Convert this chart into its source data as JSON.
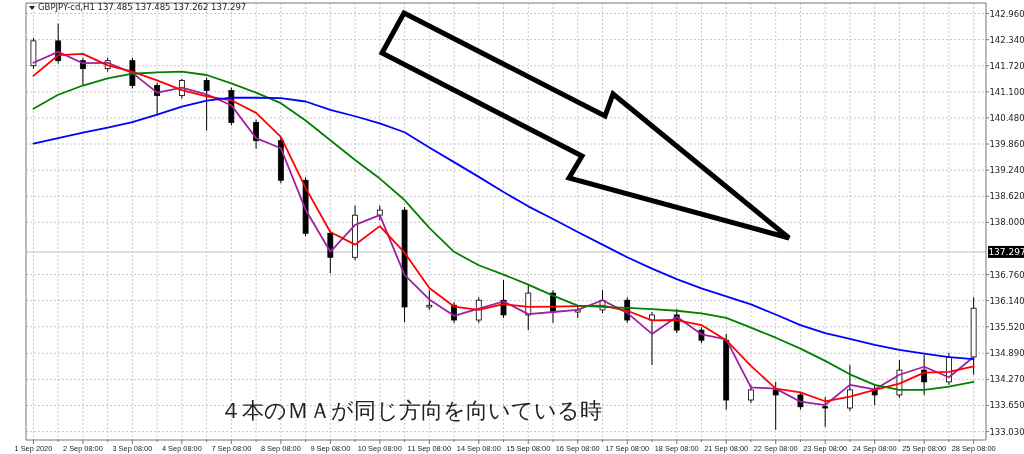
{
  "chart_data": {
    "type": "candlestick",
    "title": "GBPJPY-cd,H1 137.485 137.485 137.262 137.297",
    "annotations": [
      "４本のＭＡが同じ方向を向いている時"
    ],
    "color": "#000000",
    "categories": [
      "1 Sep 2020",
      null,
      "2 Sep 08:00",
      null,
      "3 Sep 08:00",
      null,
      "4 Sep 08:00",
      null,
      "7 Sep 08:00",
      null,
      "8 Sep 08:00",
      null,
      "9 Sep 08:00",
      null,
      "10 Sep 08:00",
      null,
      "11 Sep 08:00",
      null,
      "14 Sep 08:00",
      null,
      "15 Sep 08:00",
      null,
      "16 Sep 08:00",
      null,
      "17 Sep 08:00",
      null,
      "18 Sep 08:00",
      null,
      "21 Sep 08:00",
      null,
      "22 Sep 08:00",
      null,
      "23 Sep 08:00",
      null,
      "24 Sep 08:00",
      null,
      "25 Sep 08:00",
      null,
      "28 Sep 08:00"
    ],
    "ohlc": [
      [
        141.72,
        142.38,
        141.65,
        142.31
      ],
      [
        142.31,
        142.72,
        141.77,
        141.84
      ],
      [
        141.84,
        141.91,
        141.25,
        141.65
      ],
      [
        141.65,
        141.91,
        141.58,
        141.84
      ],
      [
        141.84,
        141.91,
        141.18,
        141.25
      ],
      [
        141.25,
        141.32,
        140.54,
        141.01
      ],
      [
        141.01,
        141.41,
        140.94,
        141.37
      ],
      [
        141.37,
        141.44,
        140.18,
        141.13
      ],
      [
        141.13,
        141.2,
        140.3,
        140.37
      ],
      [
        140.37,
        140.44,
        139.75,
        139.94
      ],
      [
        139.94,
        140.02,
        138.93,
        139.0
      ],
      [
        139.0,
        139.07,
        137.67,
        137.74
      ],
      [
        137.74,
        137.81,
        136.79,
        137.17
      ],
      [
        137.17,
        138.4,
        137.1,
        138.17
      ],
      [
        138.17,
        138.4,
        138.05,
        138.29
      ],
      [
        138.29,
        138.36,
        135.63,
        135.99
      ],
      [
        135.99,
        136.39,
        135.92,
        136.03
      ],
      [
        136.03,
        136.11,
        135.61,
        135.68
      ],
      [
        135.68,
        136.22,
        135.61,
        136.15
      ],
      [
        136.15,
        136.63,
        135.73,
        135.8
      ],
      [
        135.8,
        136.51,
        135.44,
        136.32
      ],
      [
        136.32,
        136.39,
        135.61,
        135.87
      ],
      [
        135.87,
        135.99,
        135.73,
        135.92
      ],
      [
        135.92,
        136.39,
        135.84,
        136.15
      ],
      [
        136.15,
        136.22,
        135.61,
        135.68
      ],
      [
        135.68,
        135.87,
        134.61,
        135.8
      ],
      [
        135.8,
        135.94,
        135.37,
        135.44
      ],
      [
        135.44,
        135.51,
        135.13,
        135.2
      ],
      [
        135.2,
        135.35,
        133.55,
        133.78
      ],
      [
        133.78,
        134.14,
        133.71,
        134.02
      ],
      [
        134.02,
        134.21,
        133.07,
        133.9
      ],
      [
        133.9,
        133.97,
        133.55,
        133.62
      ],
      [
        133.62,
        133.85,
        133.14,
        133.59
      ],
      [
        133.59,
        134.61,
        133.52,
        134.02
      ],
      [
        134.02,
        134.14,
        133.66,
        133.9
      ],
      [
        133.9,
        134.73,
        133.83,
        134.49
      ],
      [
        134.49,
        134.85,
        133.9,
        134.21
      ],
      [
        134.21,
        134.9,
        134.14,
        134.8
      ],
      [
        134.8,
        136.22,
        134.38,
        135.96
      ]
    ],
    "series": [
      {
        "type": "line",
        "color": "#a020a0",
        "values": [
          141.79,
          142.05,
          141.78,
          141.79,
          141.55,
          141.08,
          141.2,
          141.04,
          140.78,
          140.0,
          139.76,
          138.3,
          137.3,
          137.94,
          138.17,
          136.75,
          136.17,
          135.78,
          135.95,
          136.12,
          135.82,
          135.87,
          135.92,
          136.15,
          135.85,
          135.35,
          135.76,
          135.34,
          135.22,
          134.08,
          134.05,
          133.74,
          133.66,
          134.14,
          134.03,
          134.38,
          134.57,
          134.32,
          134.8
        ]
      },
      {
        "type": "line",
        "color": "#ff0000",
        "values": [
          141.48,
          141.97,
          142.0,
          141.73,
          141.58,
          141.37,
          141.14,
          140.99,
          140.9,
          140.6,
          140.03,
          138.82,
          137.77,
          137.47,
          137.91,
          137.28,
          136.44,
          136.0,
          135.92,
          136.06,
          135.99,
          136.0,
          136.01,
          136.02,
          135.9,
          135.67,
          135.68,
          135.56,
          135.2,
          134.59,
          134.05,
          133.96,
          133.75,
          133.86,
          134.02,
          134.17,
          134.43,
          134.45,
          134.58
        ]
      },
      {
        "type": "line",
        "color": "#008000",
        "values": [
          140.7,
          141.03,
          141.25,
          141.42,
          141.53,
          141.56,
          141.58,
          141.5,
          141.3,
          141.08,
          140.83,
          140.42,
          139.95,
          139.48,
          139.04,
          138.53,
          137.87,
          137.3,
          136.98,
          136.76,
          136.52,
          136.26,
          136.02,
          135.99,
          135.97,
          135.94,
          135.9,
          135.84,
          135.73,
          135.5,
          135.26,
          135.0,
          134.71,
          134.39,
          134.14,
          134.02,
          134.02,
          134.1,
          134.21
        ]
      },
      {
        "type": "line",
        "color": "#0000ff",
        "values": [
          139.87,
          140.0,
          140.13,
          140.25,
          140.38,
          140.56,
          140.75,
          140.89,
          140.96,
          140.96,
          140.95,
          140.87,
          140.67,
          140.52,
          140.35,
          140.14,
          139.78,
          139.43,
          139.08,
          138.72,
          138.38,
          138.08,
          137.77,
          137.47,
          137.17,
          136.9,
          136.65,
          136.43,
          136.24,
          136.05,
          135.81,
          135.56,
          135.37,
          135.23,
          135.09,
          134.97,
          134.88,
          134.8,
          134.75
        ]
      }
    ],
    "ylim": [
      132.83,
      143.21
    ],
    "yticks": [
      {
        "value": 142.96,
        "label": "142.960"
      },
      {
        "value": 142.34,
        "label": "142.340"
      },
      {
        "value": 141.72,
        "label": "141.720"
      },
      {
        "value": 141.1,
        "label": "141.100"
      },
      {
        "value": 140.48,
        "label": "140.480"
      },
      {
        "value": 139.86,
        "label": "139.860"
      },
      {
        "value": 139.24,
        "label": "139.240"
      },
      {
        "value": 138.62,
        "label": "138.620"
      },
      {
        "value": 138.0,
        "label": "138.000"
      },
      {
        "value": 136.76,
        "label": "136.760"
      },
      {
        "value": 136.14,
        "label": "136.140"
      },
      {
        "value": 135.52,
        "label": "135.520"
      },
      {
        "value": 134.89,
        "label": "134.890"
      },
      {
        "value": 134.27,
        "label": "134.270"
      },
      {
        "value": 133.65,
        "label": "133.650"
      },
      {
        "value": 133.03,
        "label": "133.030"
      }
    ],
    "grid": true,
    "ref_lines": [
      {
        "axis": "y",
        "value": 137.297,
        "label": "137.297",
        "color": "#c0c0c0"
      }
    ]
  }
}
